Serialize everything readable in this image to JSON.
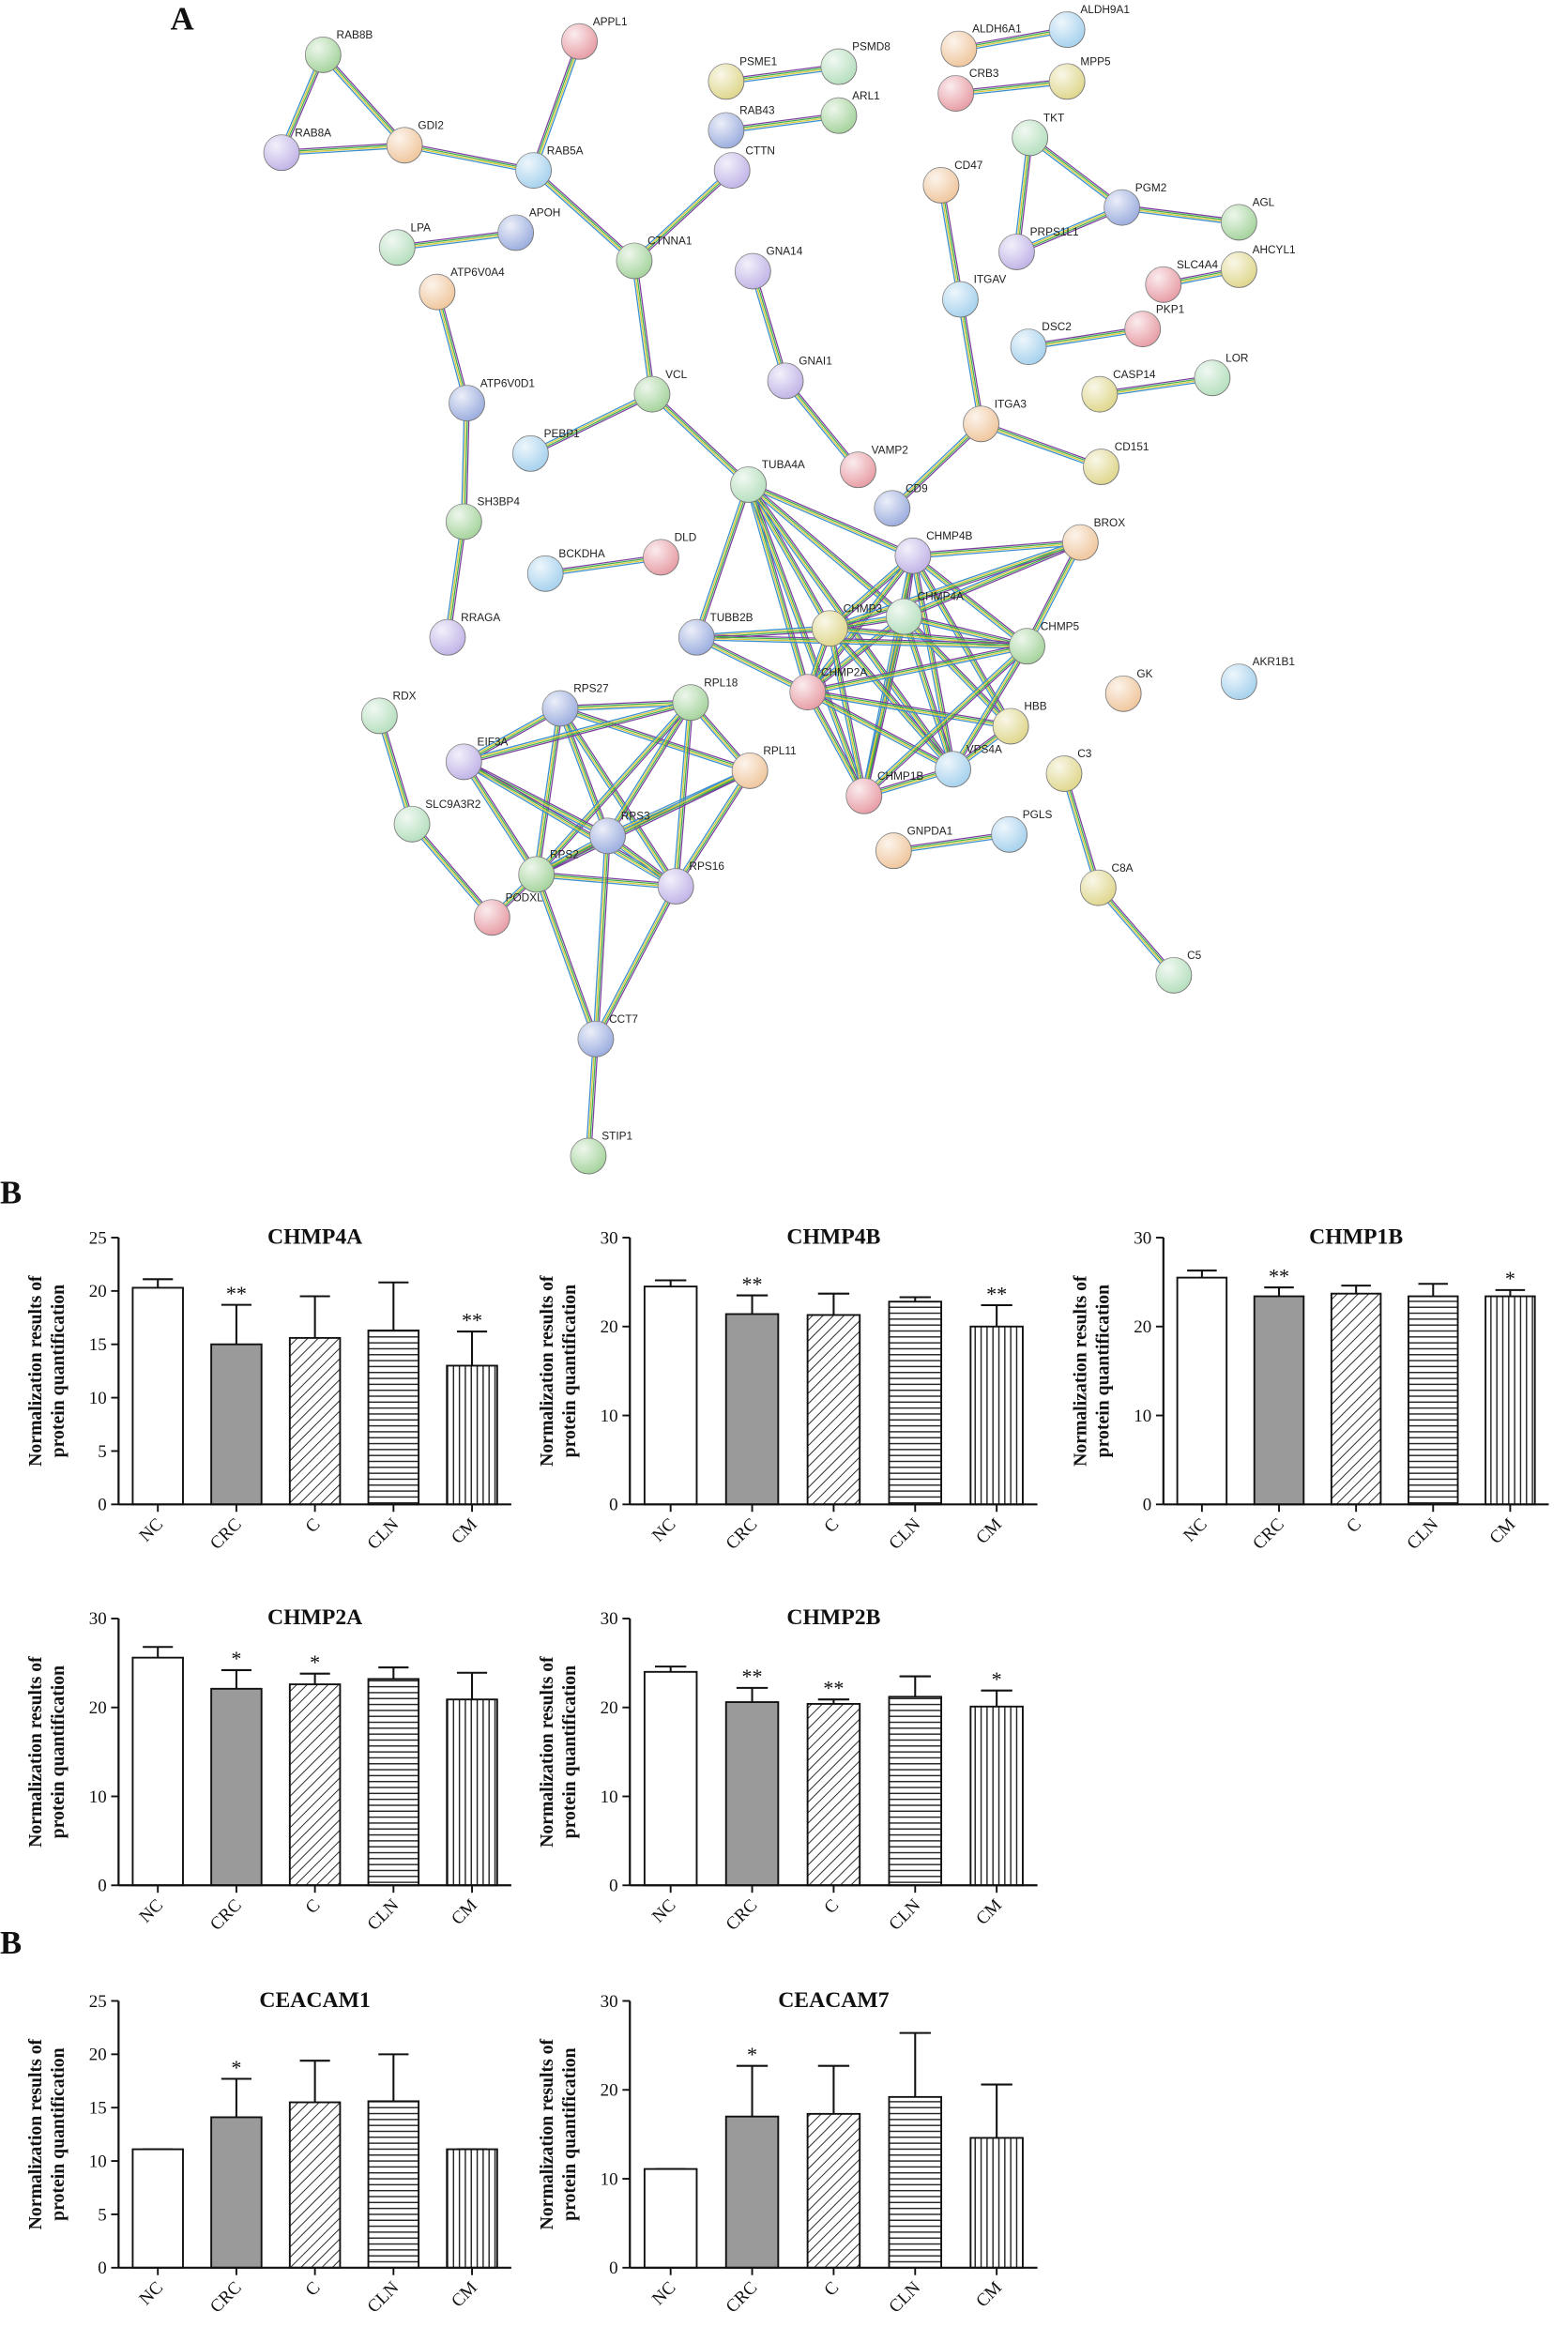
{
  "panel_labels": [
    "A",
    "B",
    "B"
  ],
  "network": {
    "nodes": [
      "RAB8B",
      "RAB8A",
      "GDI2",
      "RAB5A",
      "APPL1",
      "PSME1",
      "PSMD8",
      "RAB43",
      "ARL1",
      "CTTN",
      "ALDH6A1",
      "ALDH9A1",
      "CRB3",
      "MPP5",
      "TKT",
      "PGM2",
      "AGL",
      "PRPS1L1",
      "CD47",
      "ITGAV",
      "SLC4A4",
      "AHCYL1",
      "LPA",
      "APOH",
      "CTNNA1",
      "GNA14",
      "ATP6V0A4",
      "DSC2",
      "PKP1",
      "CASP14",
      "LOR",
      "ATP6V0D1",
      "VCL",
      "GNAI1",
      "ITGA3",
      "PEBP1",
      "VAMP2",
      "CD151",
      "TUBA4A",
      "CD9",
      "SH3BP4",
      "CHMP4B",
      "BROX",
      "BCKDHA",
      "DLD",
      "CHMP3",
      "CHMP4A",
      "TUBB2B",
      "CHMP5",
      "RRAGA",
      "GK",
      "AKR1B1",
      "CHMP2A",
      "HBB",
      "RDX",
      "RPS27",
      "RPL18",
      "EIF3A",
      "RPL11",
      "VPS4A",
      "CHMP1B",
      "C3",
      "SLC9A3R2",
      "RPS3",
      "RPS2",
      "RPS16",
      "GNPDA1",
      "PGLS",
      "PODXL",
      "C8A",
      "C5",
      "CCT7",
      "STIP1"
    ]
  },
  "chart_data": [
    {
      "type": "bar",
      "title": "CHMP4A",
      "ylabel": [
        "Normalization results of",
        "protein quantification"
      ],
      "categories": [
        "NC",
        "CRC",
        "C",
        "CLN",
        "CM"
      ],
      "values": [
        20.3,
        15.0,
        15.6,
        16.3,
        13.0
      ],
      "errors": [
        0.8,
        3.7,
        3.9,
        4.5,
        3.2
      ],
      "annotations": [
        null,
        "**",
        null,
        null,
        "**"
      ],
      "colors": [
        "#ffffff",
        "#9a9a9a",
        "#ffffff",
        "#ffffff",
        "#ffffff"
      ],
      "hatches": [
        "none",
        "none",
        "diagonal",
        "horizontal",
        "vertical"
      ],
      "ylim": [
        0,
        25
      ],
      "yticks": [
        0,
        5,
        10,
        15,
        20,
        25
      ]
    },
    {
      "type": "bar",
      "title": "CHMP4B",
      "ylabel": [
        "Normalization results of",
        "protein quantification"
      ],
      "categories": [
        "NC",
        "CRC",
        "C",
        "CLN",
        "CM"
      ],
      "values": [
        24.5,
        21.4,
        21.3,
        22.8,
        20.0
      ],
      "errors": [
        0.7,
        2.1,
        2.4,
        0.5,
        2.4
      ],
      "annotations": [
        null,
        "**",
        null,
        null,
        "**"
      ],
      "colors": [
        "#ffffff",
        "#9a9a9a",
        "#ffffff",
        "#ffffff",
        "#ffffff"
      ],
      "hatches": [
        "none",
        "none",
        "diagonal",
        "horizontal",
        "vertical"
      ],
      "ylim": [
        0,
        30
      ],
      "yticks": [
        0,
        10,
        20,
        30
      ]
    },
    {
      "type": "bar",
      "title": "CHMP1B",
      "ylabel": [
        "Normalization results of",
        "protein quantification"
      ],
      "categories": [
        "NC",
        "CRC",
        "C",
        "CLN",
        "CM"
      ],
      "values": [
        25.5,
        23.4,
        23.7,
        23.4,
        23.4
      ],
      "errors": [
        0.8,
        1.0,
        0.9,
        1.4,
        0.7
      ],
      "annotations": [
        null,
        "**",
        null,
        null,
        "*"
      ],
      "colors": [
        "#ffffff",
        "#9a9a9a",
        "#ffffff",
        "#ffffff",
        "#ffffff"
      ],
      "hatches": [
        "none",
        "none",
        "diagonal",
        "horizontal",
        "vertical"
      ],
      "ylim": [
        0,
        30
      ],
      "yticks": [
        0,
        10,
        20,
        30
      ]
    },
    {
      "type": "bar",
      "title": "CHMP2A",
      "ylabel": [
        "Normalization results of",
        "protein quantification"
      ],
      "categories": [
        "NC",
        "CRC",
        "C",
        "CLN",
        "CM"
      ],
      "values": [
        25.6,
        22.1,
        22.6,
        23.2,
        20.9
      ],
      "errors": [
        1.2,
        2.1,
        1.2,
        1.3,
        3.0
      ],
      "annotations": [
        null,
        "*",
        "*",
        null,
        null
      ],
      "colors": [
        "#ffffff",
        "#9a9a9a",
        "#ffffff",
        "#ffffff",
        "#ffffff"
      ],
      "hatches": [
        "none",
        "none",
        "diagonal",
        "horizontal",
        "vertical"
      ],
      "ylim": [
        0,
        30
      ],
      "yticks": [
        0,
        10,
        20,
        30
      ]
    },
    {
      "type": "bar",
      "title": "CHMP2B",
      "ylabel": [
        "Normalization results of",
        "protein quantification"
      ],
      "categories": [
        "NC",
        "CRC",
        "C",
        "CLN",
        "CM"
      ],
      "values": [
        24.0,
        20.6,
        20.4,
        21.2,
        20.1
      ],
      "errors": [
        0.6,
        1.6,
        0.5,
        2.3,
        1.8
      ],
      "annotations": [
        null,
        "**",
        "**",
        null,
        "*"
      ],
      "colors": [
        "#ffffff",
        "#9a9a9a",
        "#ffffff",
        "#ffffff",
        "#ffffff"
      ],
      "hatches": [
        "none",
        "none",
        "diagonal",
        "horizontal",
        "vertical"
      ],
      "ylim": [
        0,
        30
      ],
      "yticks": [
        0,
        10,
        20,
        30
      ]
    },
    {
      "type": "bar",
      "title": "CEACAM1",
      "ylabel": [
        "Normalization results of",
        "protein quantification"
      ],
      "categories": [
        "NC",
        "CRC",
        "C",
        "CLN",
        "CM"
      ],
      "values": [
        11.1,
        14.1,
        15.5,
        15.6,
        11.1
      ],
      "errors": [
        0,
        3.6,
        3.9,
        4.4,
        0
      ],
      "annotations": [
        null,
        "*",
        null,
        null,
        null
      ],
      "colors": [
        "#ffffff",
        "#9a9a9a",
        "#ffffff",
        "#ffffff",
        "#ffffff"
      ],
      "hatches": [
        "none",
        "none",
        "diagonal",
        "horizontal",
        "vertical"
      ],
      "ylim": [
        0,
        25
      ],
      "yticks": [
        0,
        5,
        10,
        15,
        20,
        25
      ]
    },
    {
      "type": "bar",
      "title": "CEACAM7",
      "ylabel": [
        "Normalization results of",
        "protein quantification"
      ],
      "categories": [
        "NC",
        "CRC",
        "C",
        "CLN",
        "CM"
      ],
      "values": [
        11.1,
        17.0,
        17.3,
        19.2,
        14.6
      ],
      "errors": [
        0,
        5.7,
        5.4,
        7.2,
        6.0
      ],
      "annotations": [
        null,
        "*",
        null,
        null,
        null
      ],
      "colors": [
        "#ffffff",
        "#9a9a9a",
        "#ffffff",
        "#ffffff",
        "#ffffff"
      ],
      "hatches": [
        "none",
        "none",
        "diagonal",
        "horizontal",
        "vertical"
      ],
      "ylim": [
        0,
        30
      ],
      "yticks": [
        0,
        10,
        20,
        30
      ]
    }
  ]
}
